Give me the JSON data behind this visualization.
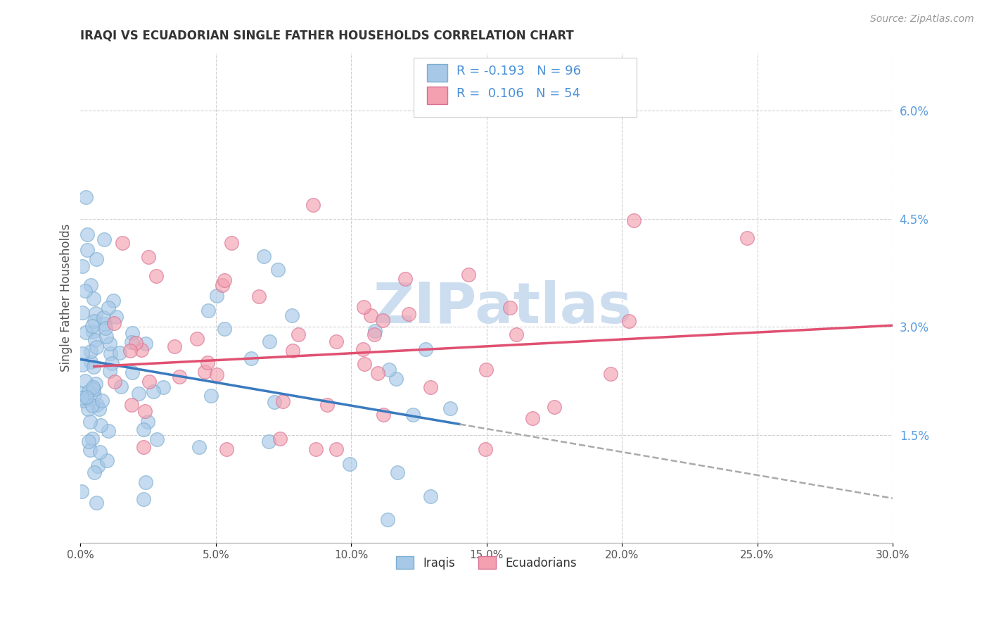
{
  "title": "IRAQI VS ECUADORIAN SINGLE FATHER HOUSEHOLDS CORRELATION CHART",
  "source": "Source: ZipAtlas.com",
  "ylabel": "Single Father Households",
  "x_ticks": [
    0.0,
    5.0,
    10.0,
    15.0,
    20.0,
    25.0,
    30.0
  ],
  "y_ticks": [
    1.5,
    3.0,
    4.5,
    6.0
  ],
  "xlim": [
    0.0,
    30.0
  ],
  "ylim": [
    0.0,
    6.8
  ],
  "iraqis_color": "#a8c8e8",
  "iraqis_edge": "#7aaed0",
  "ecuadorians_color": "#f4a0b0",
  "ecuadorians_edge": "#d87090",
  "background_color": "#ffffff",
  "grid_color": "#d0d0d0",
  "title_color": "#333333",
  "source_color": "#999999",
  "ytick_color": "#5a9de0",
  "xtick_color": "#555555",
  "ylabel_color": "#555555",
  "legend_text_color": "#4a90d9",
  "watermark_color": "#ccddf0",
  "iraqis_line_color": "#3a7abf",
  "iraqis_dash_color": "#aaaaaa",
  "ecuadorians_line_color": "#e05070",
  "iraqis_line_x_end": 14.0,
  "iraqis_line_x_start": 0.0,
  "iraqis_line_y_start": 2.55,
  "iraqis_line_y_at_end": 1.65,
  "iraqis_dash_y_end": 0.0,
  "ecuadorians_line_x_start": 0.5,
  "ecuadorians_line_y_start": 2.45,
  "ecuadorians_line_x_end": 30.0,
  "ecuadorians_line_y_end": 3.02
}
